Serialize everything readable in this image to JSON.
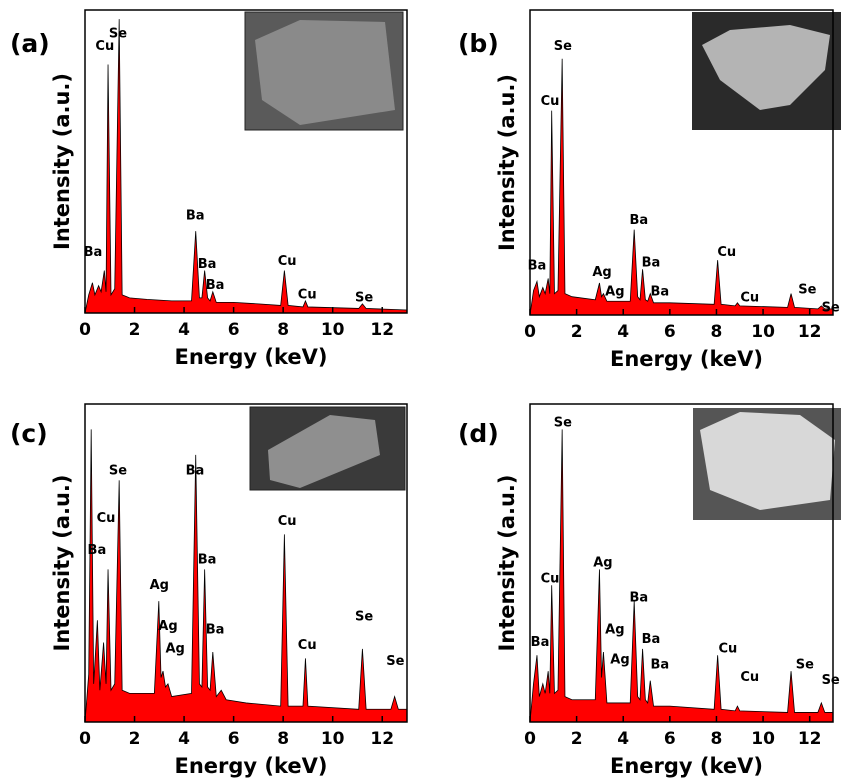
{
  "chart_data": [
    {
      "type": "area",
      "panel_label": "(a)",
      "x_label": "Energy (keV)",
      "y_label": "Intensity (a.u.)",
      "color": "#ff0000",
      "xlim": [
        0,
        13
      ],
      "ylim": [
        0,
        100
      ],
      "xticks": [
        0,
        2,
        4,
        6,
        8,
        10,
        12
      ],
      "x": [
        0,
        0.15,
        0.3,
        0.4,
        0.55,
        0.65,
        0.78,
        0.85,
        0.93,
        1.05,
        1.2,
        1.38,
        1.5,
        1.8,
        2.5,
        3.5,
        4.3,
        4.47,
        4.62,
        4.72,
        4.83,
        4.95,
        5.05,
        5.16,
        5.3,
        6,
        7,
        7.9,
        8.05,
        8.2,
        8.8,
        8.9,
        9,
        11.05,
        11.2,
        11.35,
        13
      ],
      "values": [
        0,
        6,
        10,
        6,
        9,
        7,
        14,
        7,
        82,
        6,
        8,
        97,
        6,
        5,
        4.5,
        4,
        4,
        27,
        5,
        5,
        14,
        5,
        4,
        7,
        3.5,
        3.5,
        3,
        2.5,
        14,
        2.5,
        2,
        4,
        2,
        1.5,
        3,
        1.5,
        1
      ],
      "annotations": [
        {
          "text": "Ba",
          "x": 0.32,
          "y": 20
        },
        {
          "text": "Cu",
          "x": 0.8,
          "y": 88
        },
        {
          "text": "Se",
          "x": 1.33,
          "y": 92
        },
        {
          "text": "Ba",
          "x": 4.45,
          "y": 32
        },
        {
          "text": "Ba",
          "x": 4.93,
          "y": 16
        },
        {
          "text": "Ba",
          "x": 5.25,
          "y": 9
        },
        {
          "text": "Cu",
          "x": 8.16,
          "y": 17
        },
        {
          "text": "Cu",
          "x": 8.97,
          "y": 6
        },
        {
          "text": "Se",
          "x": 11.27,
          "y": 5
        }
      ]
    },
    {
      "type": "area",
      "panel_label": "(b)",
      "x_label": "Energy (keV)",
      "y_label": "Intensity (a.u.)",
      "color": "#ff0000",
      "xlim": [
        0,
        13
      ],
      "ylim": [
        0,
        100
      ],
      "xticks": [
        0,
        2,
        4,
        6,
        8,
        10,
        12
      ],
      "x": [
        0,
        0.15,
        0.3,
        0.4,
        0.55,
        0.65,
        0.78,
        0.85,
        0.93,
        1.05,
        1.2,
        1.38,
        1.5,
        1.8,
        2.8,
        2.98,
        3.07,
        3.15,
        3.3,
        4.3,
        4.47,
        4.62,
        4.72,
        4.83,
        4.95,
        5.05,
        5.16,
        5.3,
        6,
        7.9,
        8.05,
        8.2,
        8.8,
        8.9,
        9,
        11.05,
        11.2,
        11.35,
        12.35,
        12.5,
        12.65,
        13
      ],
      "values": [
        0,
        8,
        11,
        6,
        9,
        7,
        12,
        7,
        67,
        7,
        8,
        84,
        7,
        6,
        5,
        10.5,
        6,
        7,
        4.5,
        4.5,
        28,
        6,
        5,
        15,
        5,
        4.5,
        7,
        4,
        4,
        3.5,
        18,
        3.5,
        3,
        4,
        3,
        2.5,
        7,
        2.5,
        2,
        3,
        2,
        2
      ],
      "annotations": [
        {
          "text": "Ba",
          "x": 0.3,
          "y": 16
        },
        {
          "text": "Cu",
          "x": 0.86,
          "y": 70
        },
        {
          "text": "Se",
          "x": 1.41,
          "y": 88
        },
        {
          "text": "Ag",
          "x": 3.09,
          "y": 14
        },
        {
          "text": "Ag",
          "x": 3.64,
          "y": 7.5
        },
        {
          "text": "Ba",
          "x": 4.67,
          "y": 31
        },
        {
          "text": "Ba",
          "x": 5.19,
          "y": 17
        },
        {
          "text": "Ba",
          "x": 5.57,
          "y": 7.5
        },
        {
          "text": "Cu",
          "x": 8.44,
          "y": 20.5
        },
        {
          "text": "Cu",
          "x": 9.43,
          "y": 5.6
        },
        {
          "text": "Se",
          "x": 11.9,
          "y": 8.2
        },
        {
          "text": "Se",
          "x": 12.9,
          "y": 2.3
        }
      ]
    },
    {
      "type": "area",
      "panel_label": "(c)",
      "x_label": "Energy (keV)",
      "y_label": "Intensity (a.u.)",
      "color": "#ff0000",
      "xlim": [
        0,
        13
      ],
      "ylim": [
        0,
        100
      ],
      "xticks": [
        0,
        2,
        4,
        6,
        8,
        10,
        12
      ],
      "x": [
        0,
        0.15,
        0.25,
        0.35,
        0.5,
        0.6,
        0.75,
        0.85,
        0.93,
        1.05,
        1.2,
        1.38,
        1.5,
        1.8,
        2.8,
        2.98,
        3.07,
        3.15,
        3.25,
        3.35,
        3.5,
        4.3,
        4.47,
        4.62,
        4.72,
        4.83,
        4.95,
        5.05,
        5.16,
        5.3,
        5.5,
        5.7,
        6.5,
        7.9,
        8.05,
        8.2,
        8.8,
        8.9,
        9,
        11.05,
        11.2,
        11.35,
        12.35,
        12.5,
        12.65,
        13
      ],
      "values": [
        0,
        15,
        92,
        12,
        32,
        10,
        25,
        12,
        48,
        10,
        12,
        76,
        10,
        9,
        9,
        38,
        14,
        16,
        11,
        12,
        8,
        9,
        84,
        12,
        11,
        48,
        11,
        10,
        22,
        8,
        10,
        7,
        6,
        5,
        59,
        5,
        5,
        20,
        5,
        4,
        23,
        4,
        4,
        8,
        4,
        4
      ],
      "annotations": [
        {
          "text": "Ba",
          "x": 0.48,
          "y": 54
        },
        {
          "text": "Cu",
          "x": 0.85,
          "y": 64
        },
        {
          "text": "Se",
          "x": 1.33,
          "y": 79
        },
        {
          "text": "Ag",
          "x": 3.0,
          "y": 43
        },
        {
          "text": "Ag",
          "x": 3.35,
          "y": 30
        },
        {
          "text": "Ag",
          "x": 3.64,
          "y": 23
        },
        {
          "text": "Ba",
          "x": 4.44,
          "y": 79
        },
        {
          "text": "Ba",
          "x": 4.93,
          "y": 51
        },
        {
          "text": "Ba",
          "x": 5.25,
          "y": 29
        },
        {
          "text": "Cu",
          "x": 8.16,
          "y": 63
        },
        {
          "text": "Cu",
          "x": 8.97,
          "y": 24
        },
        {
          "text": "Se",
          "x": 11.27,
          "y": 33
        },
        {
          "text": "Se",
          "x": 12.53,
          "y": 19
        }
      ]
    },
    {
      "type": "area",
      "panel_label": "(d)",
      "x_label": "Energy (keV)",
      "y_label": "Intensity (a.u.)",
      "color": "#ff0000",
      "xlim": [
        0,
        13
      ],
      "ylim": [
        0,
        100
      ],
      "xticks": [
        0,
        2,
        4,
        6,
        8,
        10,
        12
      ],
      "x": [
        0,
        0.15,
        0.3,
        0.4,
        0.55,
        0.65,
        0.78,
        0.85,
        0.93,
        1.05,
        1.2,
        1.38,
        1.5,
        1.8,
        2.8,
        2.98,
        3.07,
        3.15,
        3.3,
        4.3,
        4.47,
        4.62,
        4.72,
        4.83,
        4.95,
        5.05,
        5.16,
        5.3,
        6,
        7.9,
        8.05,
        8.2,
        8.8,
        8.9,
        9,
        11.05,
        11.2,
        11.35,
        12.35,
        12.5,
        12.65,
        13
      ],
      "values": [
        0,
        12,
        21,
        8,
        12,
        9,
        16,
        9,
        43,
        9,
        10,
        92,
        8,
        7,
        7,
        48,
        14,
        22,
        6,
        6,
        38,
        8,
        7,
        23,
        7,
        6,
        13,
        5,
        5,
        4,
        21,
        4,
        3.5,
        5,
        3.5,
        3,
        16,
        3,
        3,
        6,
        3,
        3
      ],
      "annotations": [
        {
          "text": "Ba",
          "x": 0.43,
          "y": 25
        },
        {
          "text": "Cu",
          "x": 0.86,
          "y": 45
        },
        {
          "text": "Se",
          "x": 1.41,
          "y": 94
        },
        {
          "text": "Ag",
          "x": 3.13,
          "y": 50
        },
        {
          "text": "Ag",
          "x": 3.64,
          "y": 29
        },
        {
          "text": "Ag",
          "x": 3.86,
          "y": 19.5
        },
        {
          "text": "Ba",
          "x": 4.67,
          "y": 39
        },
        {
          "text": "Ba",
          "x": 5.19,
          "y": 26
        },
        {
          "text": "Ba",
          "x": 5.57,
          "y": 18
        },
        {
          "text": "Cu",
          "x": 8.49,
          "y": 23
        },
        {
          "text": "Cu",
          "x": 9.43,
          "y": 14
        },
        {
          "text": "Se",
          "x": 11.79,
          "y": 18
        },
        {
          "text": "Se",
          "x": 12.9,
          "y": 13
        }
      ]
    }
  ]
}
